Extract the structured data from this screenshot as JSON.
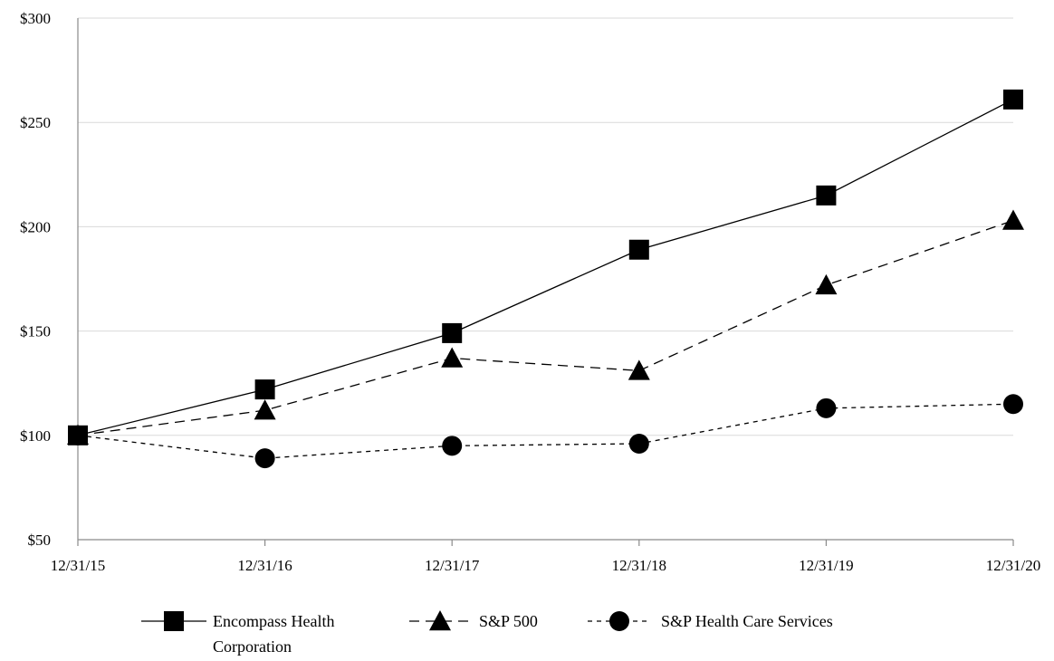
{
  "chart_data": {
    "type": "line",
    "title": "",
    "xlabel": "",
    "ylabel": "",
    "categories": [
      "12/31/15",
      "12/31/16",
      "12/31/17",
      "12/31/18",
      "12/31/19",
      "12/31/20"
    ],
    "ylim": [
      50,
      300
    ],
    "yticks": [
      50,
      100,
      150,
      200,
      250,
      300
    ],
    "ytick_labels": [
      "$50",
      "$100",
      "$150",
      "$200",
      "$250",
      "$300"
    ],
    "grid": "horizontal",
    "legend_placement": "bottom",
    "series": [
      {
        "name": "Encompass Health Corporation",
        "name_lines": [
          "Encompass Health",
          "Corporation"
        ],
        "values": [
          100,
          122,
          149,
          189,
          215,
          261
        ],
        "marker": "square",
        "line_style": "solid",
        "color": "#000000"
      },
      {
        "name": "S&P 500",
        "name_lines": [
          "S&P 500"
        ],
        "values": [
          100,
          112,
          137,
          131,
          172,
          203
        ],
        "marker": "triangle",
        "line_style": "long-dash",
        "color": "#000000"
      },
      {
        "name": "S&P Health Care Services",
        "name_lines": [
          "S&P Health Care Services"
        ],
        "values": [
          100,
          89,
          95,
          96,
          113,
          115
        ],
        "marker": "circle",
        "line_style": "short-dash",
        "color": "#000000"
      }
    ]
  }
}
